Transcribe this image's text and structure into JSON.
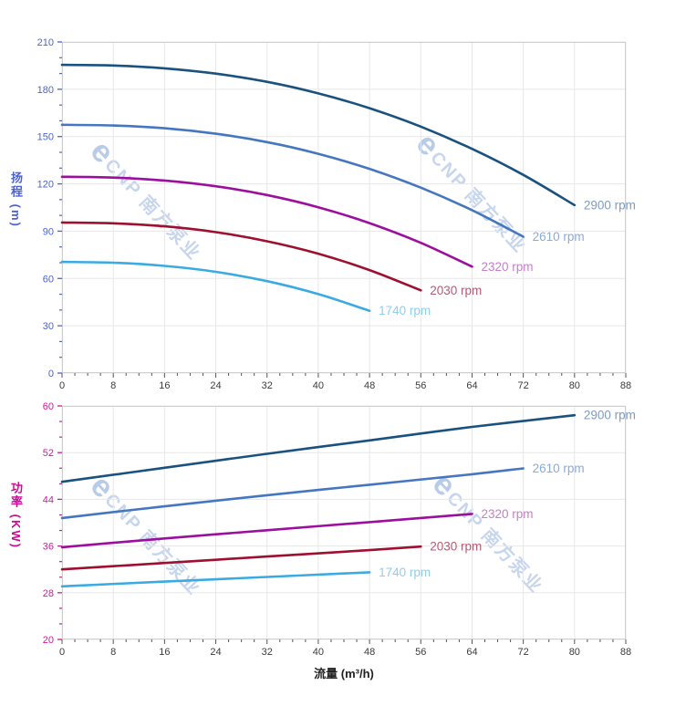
{
  "watermark": {
    "logo_char": "e",
    "text": "CNP 南方泵业"
  },
  "chart_data": [
    {
      "type": "line",
      "panel": "head",
      "ylabel": "扬程 (m)",
      "xlabel": "",
      "xlim": [
        0,
        88
      ],
      "ylim": [
        0,
        210
      ],
      "xticks": [
        0,
        8,
        16,
        24,
        32,
        40,
        48,
        56,
        64,
        72,
        80,
        88
      ],
      "yticks": [
        0,
        30,
        60,
        90,
        120,
        150,
        180,
        210
      ],
      "grid": true,
      "legend_position": "end-of-line",
      "axis_color": "#4a63d4",
      "xtick_color": "#3b3b3b",
      "series": [
        {
          "name": "2900 rpm",
          "color": "#1a527f",
          "label_color": "#7d9cc2",
          "points": [
            [
              0,
              195.5
            ],
            [
              8,
              195.1
            ],
            [
              16,
              193.3
            ],
            [
              24,
              189.9
            ],
            [
              32,
              184.7
            ],
            [
              40,
              177.4
            ],
            [
              48,
              168.0
            ],
            [
              56,
              156.3
            ],
            [
              64,
              142.2
            ],
            [
              72,
              125.7
            ],
            [
              80,
              106.5
            ]
          ]
        },
        {
          "name": "2610 rpm",
          "color": "#4577c1",
          "label_color": "#8aabda",
          "points": [
            [
              0,
              157.5
            ],
            [
              8,
              157.0
            ],
            [
              16,
              155.3
            ],
            [
              24,
              151.8
            ],
            [
              32,
              146.5
            ],
            [
              40,
              139.1
            ],
            [
              48,
              129.5
            ],
            [
              56,
              117.6
            ],
            [
              64,
              103.3
            ],
            [
              72,
              86.5
            ]
          ]
        },
        {
          "name": "2320 rpm",
          "color": "#9c0f9e",
          "label_color": "#c480c8",
          "points": [
            [
              0,
              124.5
            ],
            [
              8,
              124.0
            ],
            [
              16,
              122.1
            ],
            [
              24,
              118.5
            ],
            [
              32,
              112.9
            ],
            [
              40,
              105.2
            ],
            [
              48,
              95.1
            ],
            [
              56,
              82.6
            ],
            [
              64,
              67.5
            ]
          ]
        },
        {
          "name": "2030 rpm",
          "color": "#9e1030",
          "label_color": "#b25c74",
          "points": [
            [
              0,
              95.5
            ],
            [
              8,
              95.0
            ],
            [
              16,
              93.1
            ],
            [
              24,
              89.4
            ],
            [
              32,
              83.6
            ],
            [
              40,
              75.7
            ],
            [
              48,
              65.3
            ],
            [
              56,
              52.5
            ]
          ]
        },
        {
          "name": "1740 rpm",
          "color": "#3aabe2",
          "label_color": "#90ceee",
          "points": [
            [
              0,
              70.5
            ],
            [
              8,
              70.0
            ],
            [
              16,
              68.0
            ],
            [
              24,
              64.2
            ],
            [
              32,
              58.3
            ],
            [
              40,
              50.1
            ],
            [
              48,
              39.5
            ]
          ]
        }
      ]
    },
    {
      "type": "line",
      "panel": "power",
      "ylabel": "功率 (KW)",
      "xlabel": "流量 (m³/h)",
      "xlim": [
        0,
        88
      ],
      "ylim": [
        20,
        60
      ],
      "xticks": [
        0,
        8,
        16,
        24,
        32,
        40,
        48,
        56,
        64,
        72,
        80,
        88
      ],
      "yticks": [
        20,
        28,
        36,
        44,
        52,
        60
      ],
      "grid": true,
      "legend_position": "end-of-line",
      "axis_color": "#d6169c",
      "xtick_color": "#3b3b3b",
      "series": [
        {
          "name": "2900 rpm",
          "color": "#1a527f",
          "label_color": "#7d9cc2",
          "points": [
            [
              0,
              47.0
            ],
            [
              16,
              49.4
            ],
            [
              32,
              51.8
            ],
            [
              48,
              54.1
            ],
            [
              64,
              56.4
            ],
            [
              80,
              58.4
            ]
          ]
        },
        {
          "name": "2610 rpm",
          "color": "#4577c1",
          "label_color": "#8aabda",
          "points": [
            [
              0,
              40.8
            ],
            [
              16,
              42.8
            ],
            [
              32,
              44.7
            ],
            [
              48,
              46.5
            ],
            [
              64,
              48.3
            ],
            [
              72,
              49.3
            ]
          ]
        },
        {
          "name": "2320 rpm",
          "color": "#9c0f9e",
          "label_color": "#c480c8",
          "points": [
            [
              0,
              35.8
            ],
            [
              16,
              37.3
            ],
            [
              32,
              38.7
            ],
            [
              48,
              40.1
            ],
            [
              64,
              41.5
            ]
          ]
        },
        {
          "name": "2030 rpm",
          "color": "#9e1030",
          "label_color": "#b25c74",
          "points": [
            [
              0,
              32.0
            ],
            [
              16,
              33.1
            ],
            [
              32,
              34.2
            ],
            [
              48,
              35.3
            ],
            [
              56,
              35.9
            ]
          ]
        },
        {
          "name": "1740 rpm",
          "color": "#3aabe2",
          "label_color": "#90ceee",
          "points": [
            [
              0,
              29.1
            ],
            [
              16,
              29.9
            ],
            [
              32,
              30.7
            ],
            [
              48,
              31.5
            ]
          ]
        }
      ]
    }
  ],
  "style_colors": {
    "grid": "#e7e7e7",
    "border": "#cfcfcf",
    "xtick_mark": "#555555"
  }
}
